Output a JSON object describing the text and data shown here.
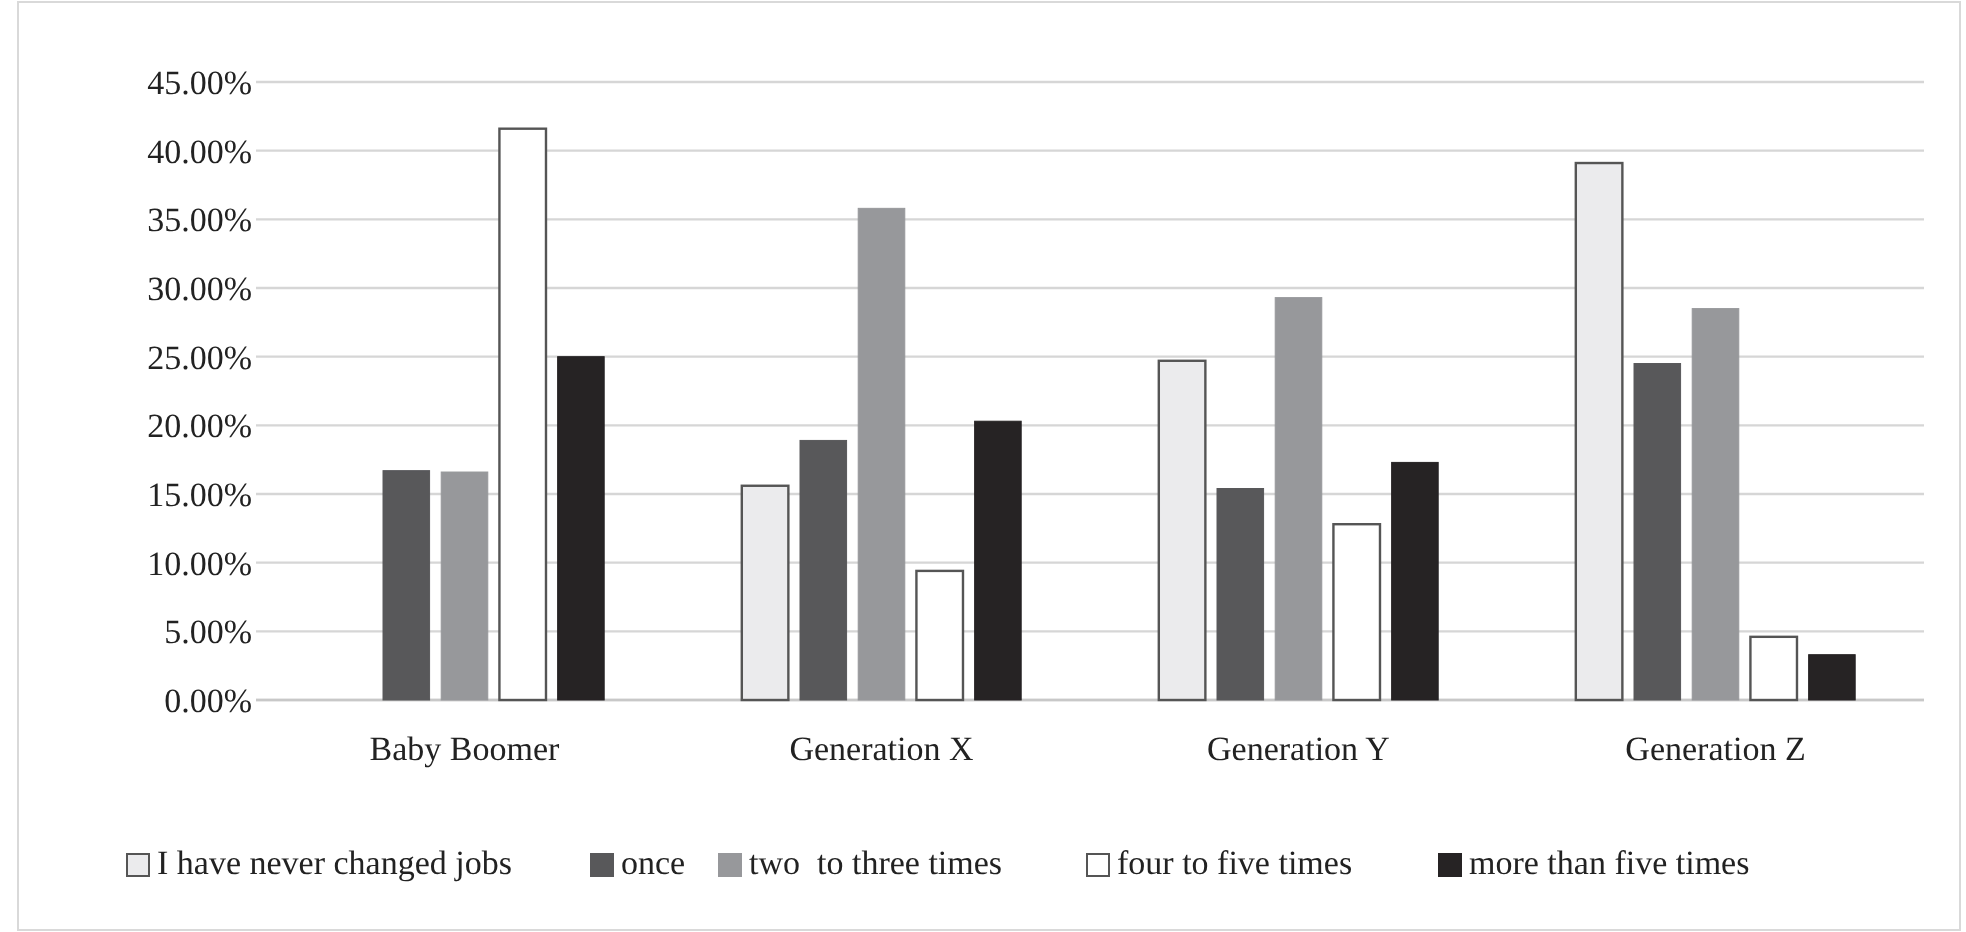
{
  "chart_data": {
    "type": "bar",
    "categories": [
      "Baby Boomer",
      "Generation X",
      "Generation Y",
      "Generation Z"
    ],
    "series": [
      {
        "name": "I have never changed jobs",
        "color": "#ebebed",
        "values": [
          null,
          15.6,
          24.7,
          39.1
        ]
      },
      {
        "name": "once",
        "color": "#58585a",
        "values": [
          16.7,
          18.9,
          15.4,
          24.5
        ]
      },
      {
        "name": "two  to three times",
        "color": "#97989b",
        "values": [
          16.6,
          35.8,
          29.3,
          28.5
        ]
      },
      {
        "name": "four to five times",
        "color": "#ffffff",
        "values": [
          41.6,
          9.4,
          12.8,
          4.6
        ]
      },
      {
        "name": "more than five times",
        "color": "#262324",
        "values": [
          25.0,
          20.3,
          17.3,
          3.3
        ]
      }
    ],
    "ylim": [
      0,
      45
    ],
    "yticks": [
      {
        "value": 0,
        "label": "0.00%"
      },
      {
        "value": 5,
        "label": "5.00%"
      },
      {
        "value": 10,
        "label": "10.00%"
      },
      {
        "value": 15,
        "label": "15.00%"
      },
      {
        "value": 20,
        "label": "20.00%"
      },
      {
        "value": 25,
        "label": "25.00%"
      },
      {
        "value": 30,
        "label": "30.00%"
      },
      {
        "value": 35,
        "label": "35.00%"
      },
      {
        "value": 40,
        "label": "40.00%"
      },
      {
        "value": 45,
        "label": "45.00%"
      }
    ],
    "grid": "y",
    "legend": "bottom"
  }
}
